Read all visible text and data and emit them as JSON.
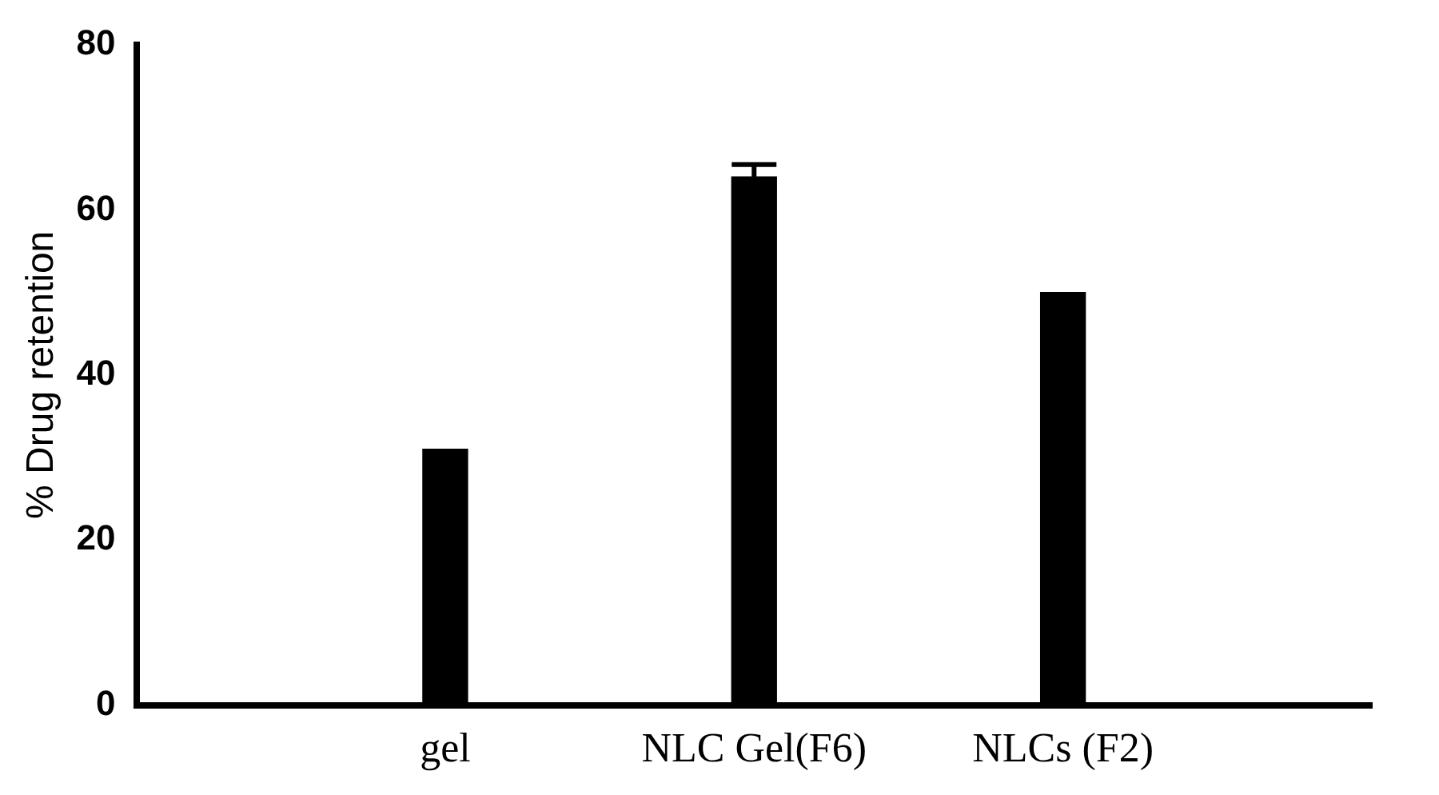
{
  "chart_data": {
    "type": "bar",
    "ylabel": "% Drug retention",
    "categories": [
      null,
      "gel",
      "NLC Gel(F6)",
      "NLCs (F2)",
      null
    ],
    "values": [
      null,
      31,
      64,
      50,
      null
    ],
    "errors": [
      null,
      null,
      1.5,
      null,
      null
    ],
    "color": "#000000",
    "ylim": [
      0,
      80
    ],
    "yticks": [
      0,
      20,
      40,
      60,
      80
    ],
    "grid": false,
    "legend": false
  }
}
